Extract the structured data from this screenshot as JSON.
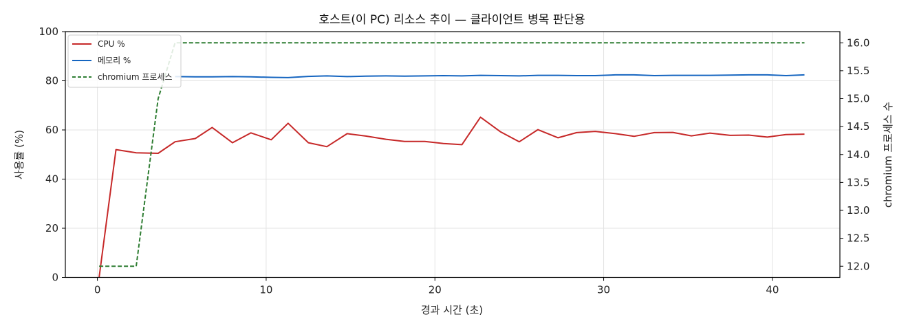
{
  "chart_data": {
    "type": "line",
    "title": "호스트(이 PC) 리소스 추이 — 클라이언트 병목 판단용",
    "xlabel": "경과 시간 (초)",
    "ylabel": "사용률 (%)",
    "y2label": "chromium 프로세스 수",
    "xlim": [
      -1.9,
      44
    ],
    "ylim": [
      0,
      100
    ],
    "y2lim": [
      11.8,
      16.2
    ],
    "x_ticks": [
      0,
      10,
      20,
      30,
      40
    ],
    "y_ticks": [
      0,
      20,
      40,
      60,
      80,
      100
    ],
    "y2_ticks": [
      12.0,
      12.5,
      13.0,
      13.5,
      14.0,
      14.5,
      15.0,
      15.5,
      16.0
    ],
    "y2_tick_labels": [
      "12.0",
      "12.5",
      "13.0",
      "13.5",
      "14.0",
      "14.5",
      "15.0",
      "15.5",
      "16.0"
    ],
    "grid": true,
    "legend_position": "top-left",
    "series": [
      {
        "name": "CPU %",
        "axis": "left",
        "color": "#c62828",
        "style": "solid",
        "x": [
          0.1,
          1.1,
          2.3,
          3.6,
          4.6,
          5.8,
          6.8,
          8.0,
          9.1,
          10.3,
          11.3,
          12.5,
          13.6,
          14.8,
          15.9,
          17.1,
          18.2,
          19.4,
          20.5,
          21.6,
          22.7,
          23.9,
          25.0,
          26.1,
          27.3,
          28.4,
          29.5,
          30.7,
          31.8,
          33.0,
          34.1,
          35.2,
          36.3,
          37.5,
          38.6,
          39.7,
          40.8,
          41.9
        ],
        "y": [
          0,
          52,
          50.7,
          50.5,
          55.2,
          56.5,
          61,
          54.8,
          58.8,
          56,
          62.7,
          54.8,
          53.2,
          58.5,
          57.5,
          56.2,
          55.3,
          55.3,
          54.5,
          54,
          65.2,
          59.2,
          55.2,
          60.1,
          56.8,
          58.9,
          59.4,
          58.5,
          57.4,
          58.9,
          59,
          57.6,
          58.7,
          57.8,
          57.9,
          57.1,
          58.1,
          58.3
        ]
      },
      {
        "name": "메모리 %",
        "axis": "left",
        "color": "#1565c0",
        "style": "solid",
        "x": [
          4.6,
          5.8,
          6.8,
          8.0,
          9.1,
          10.3,
          11.3,
          12.5,
          13.6,
          14.8,
          15.9,
          17.1,
          18.2,
          19.4,
          20.5,
          21.6,
          22.7,
          23.9,
          25.0,
          26.1,
          27.3,
          28.4,
          29.5,
          30.7,
          31.8,
          33.0,
          34.1,
          35.2,
          36.3,
          37.5,
          38.6,
          39.7,
          40.8,
          41.9
        ],
        "y": [
          81.7,
          81.6,
          81.6,
          81.7,
          81.6,
          81.4,
          81.3,
          81.8,
          82.0,
          81.7,
          81.9,
          82.0,
          81.9,
          82.0,
          82.1,
          82.0,
          82.2,
          82.1,
          82.0,
          82.2,
          82.2,
          82.1,
          82.1,
          82.4,
          82.4,
          82.1,
          82.2,
          82.2,
          82.2,
          82.3,
          82.4,
          82.4,
          82.1,
          82.4
        ]
      },
      {
        "name": "chromium 프로세스",
        "axis": "right",
        "color": "#2e7d32",
        "style": "dashed",
        "x": [
          0.1,
          1.1,
          2.3,
          3.6,
          4.6,
          5.8,
          6.8,
          8.0,
          9.1,
          10.3,
          11.3,
          12.5,
          13.6,
          14.8,
          15.9,
          17.1,
          18.2,
          19.4,
          20.5,
          21.6,
          22.7,
          23.9,
          25.0,
          26.1,
          27.3,
          28.4,
          29.5,
          30.7,
          31.8,
          33.0,
          34.1,
          35.2,
          36.3,
          37.5,
          38.6,
          39.7,
          40.8,
          41.9
        ],
        "y": [
          12,
          12,
          12,
          15,
          16,
          16,
          16,
          16,
          16,
          16,
          16,
          16,
          16,
          16,
          16,
          16,
          16,
          16,
          16,
          16,
          16,
          16,
          16,
          16,
          16,
          16,
          16,
          16,
          16,
          16,
          16,
          16,
          16,
          16,
          16,
          16,
          16,
          16
        ]
      }
    ]
  }
}
